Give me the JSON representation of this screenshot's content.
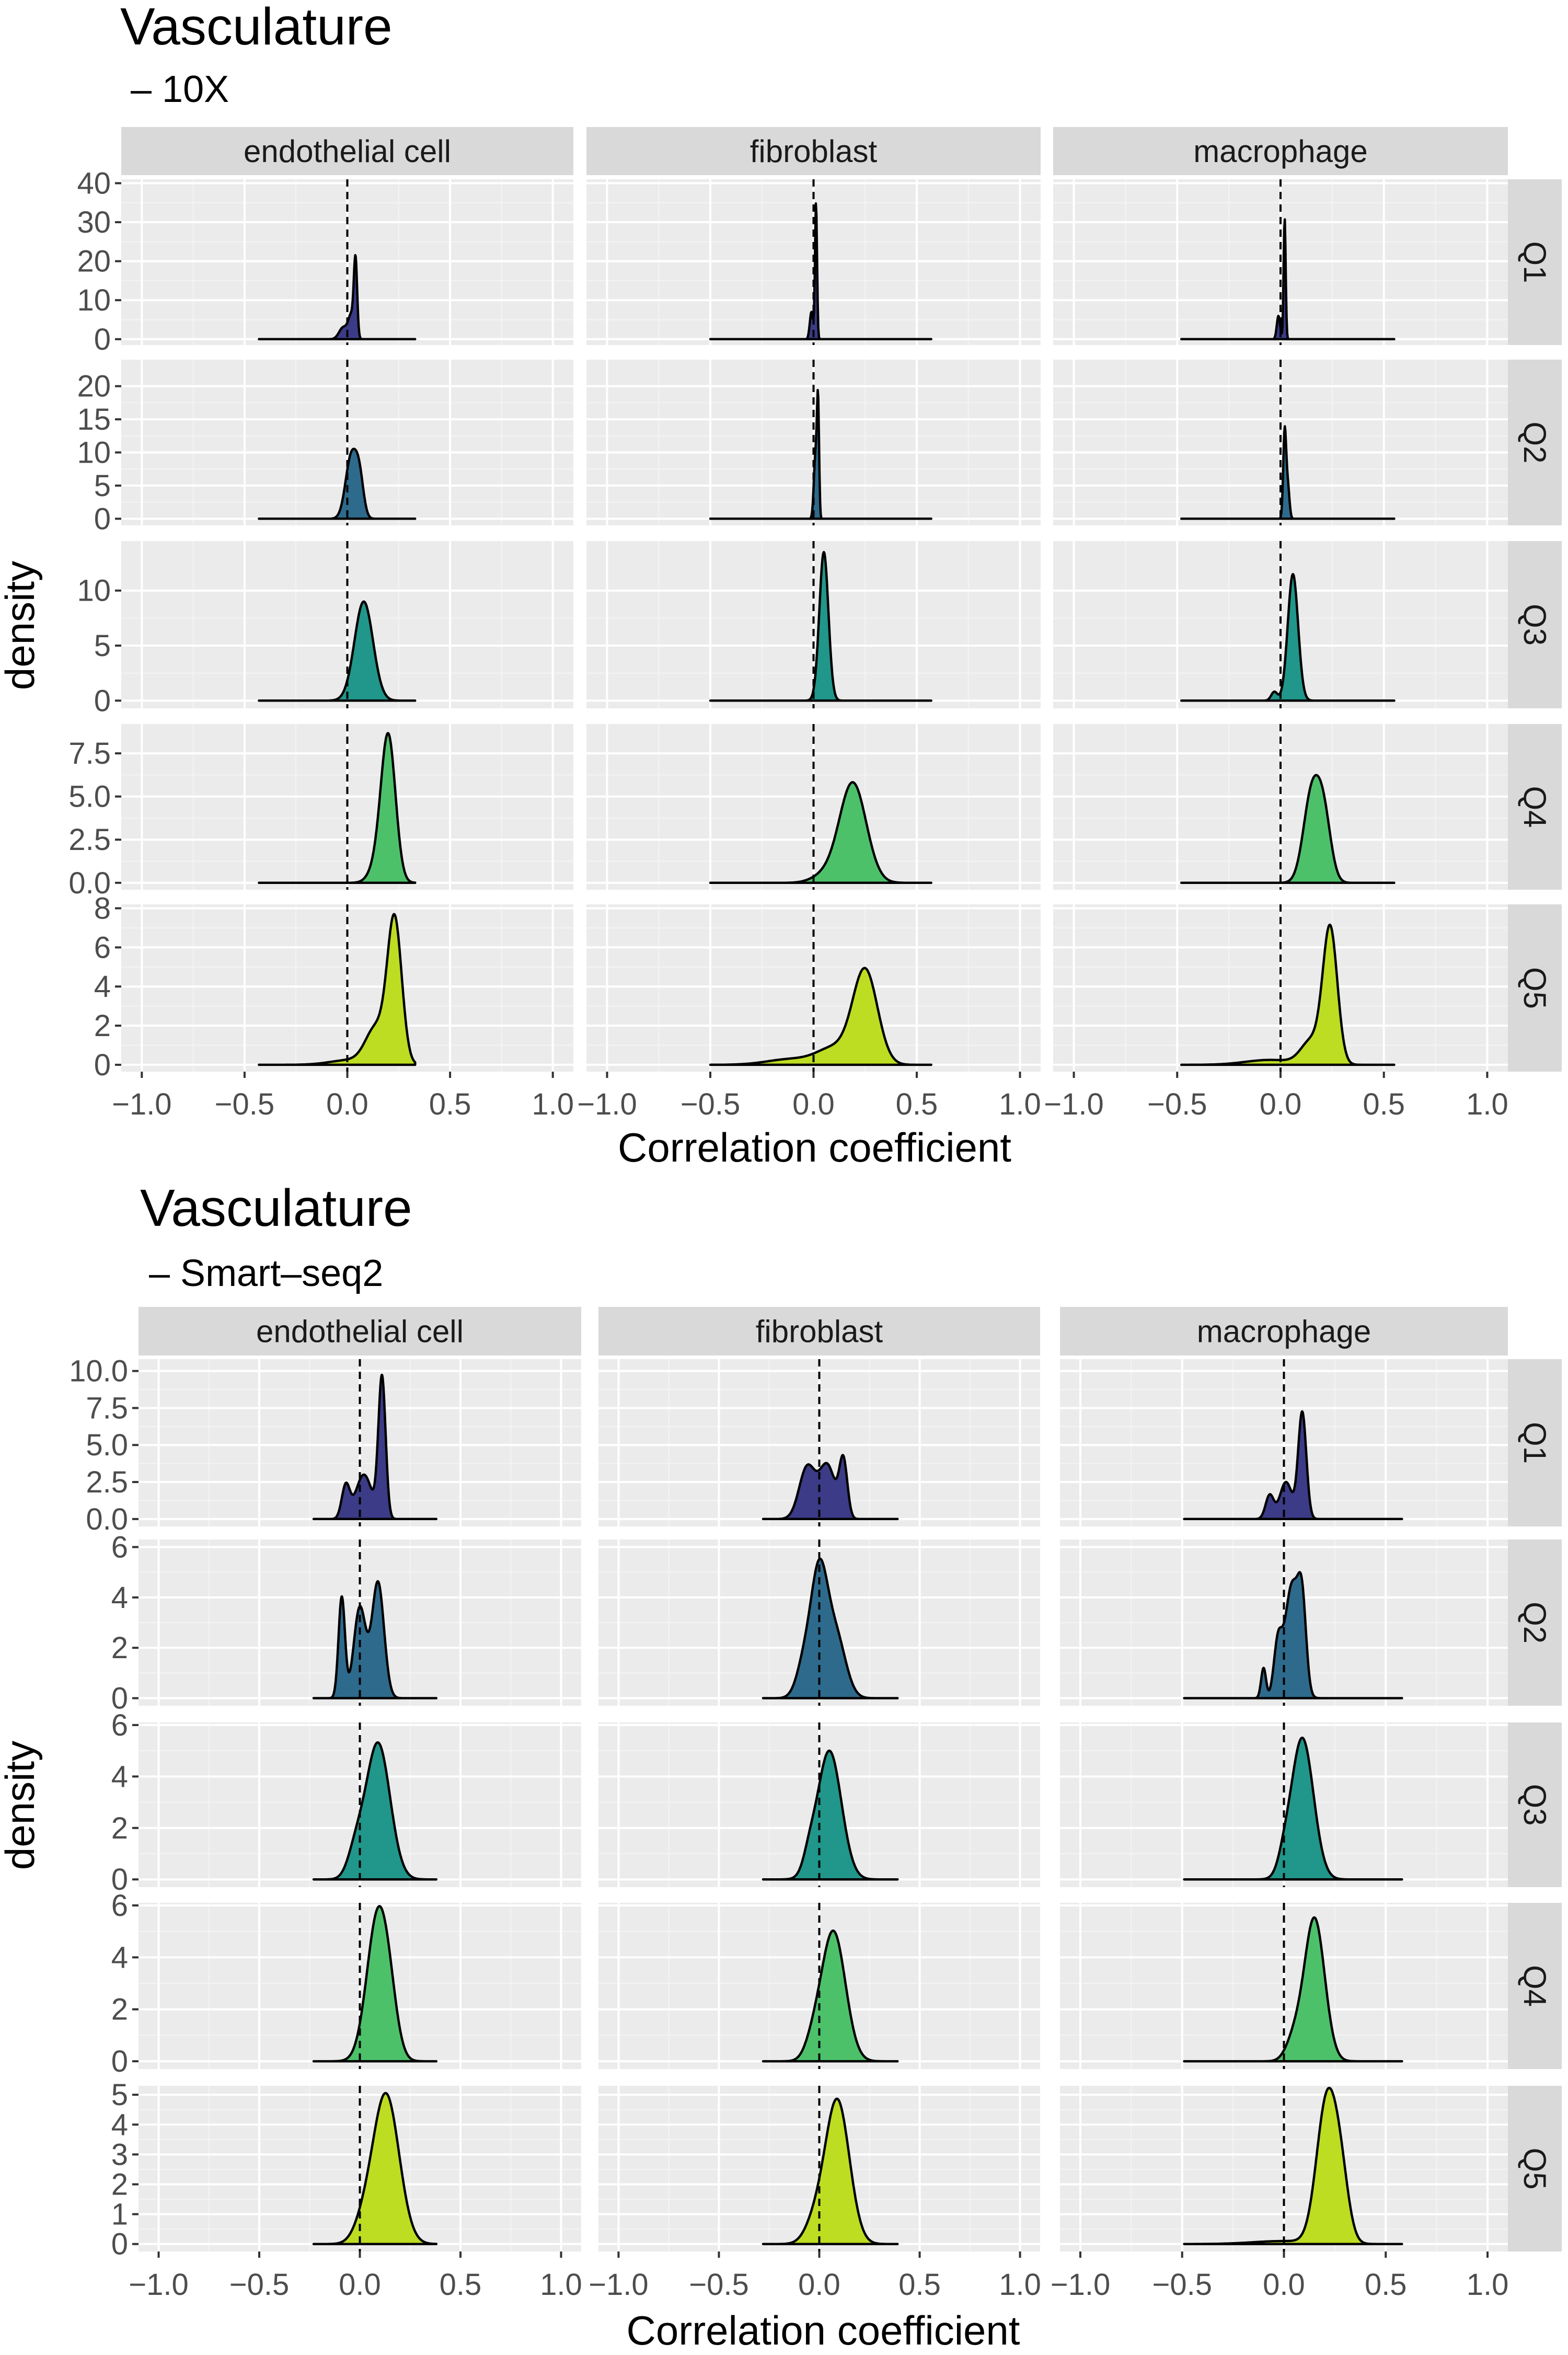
{
  "colors": {
    "panel_bg": "#EBEBEB",
    "strip_bg": "#D9D9D9",
    "grid_major": "#FFFFFF",
    "grid_minor": "#F4F4F4",
    "tick_text": "#4D4D4D",
    "outline": "#000000",
    "quantiles": {
      "Q1": "#3B3B87",
      "Q2": "#2E6A8C",
      "Q3": "#21968A",
      "Q4": "#4DC16A",
      "Q5": "#BDDD22"
    }
  },
  "chart_data": [
    {
      "type": "density",
      "title": "Vasculature",
      "subtitle": "– 10X",
      "xlabel": "Correlation coefficient",
      "ylabel": "density",
      "xlim": [
        -1.1,
        1.1
      ],
      "xticks": [
        -1.0,
        -0.5,
        0.0,
        0.5,
        1.0
      ],
      "xtick_labels": [
        "−1.0",
        "−0.5",
        "0.0",
        "0.5",
        "1.0"
      ],
      "vline": 0,
      "columns": [
        "endothelial cell",
        "fibroblast",
        "macrophage"
      ],
      "rows": [
        {
          "label": "Q1",
          "yticks": [
            0,
            10,
            20,
            30,
            40
          ],
          "ytick_labels": [
            "0",
            "10",
            "20",
            "30",
            "40"
          ],
          "ylim": [
            -1.5,
            41
          ]
        },
        {
          "label": "Q2",
          "yticks": [
            0,
            5,
            10,
            15,
            20
          ],
          "ytick_labels": [
            "0",
            "5",
            "10",
            "15",
            "20"
          ],
          "ylim": [
            -1,
            24
          ]
        },
        {
          "label": "Q3",
          "yticks": [
            0,
            5,
            10
          ],
          "ytick_labels": [
            "0",
            "5",
            "10"
          ],
          "ylim": [
            -0.7,
            14.5
          ]
        },
        {
          "label": "Q4",
          "yticks": [
            0,
            2.5,
            5,
            7.5
          ],
          "ytick_labels": [
            "0.0",
            "2.5",
            "5.0",
            "7.5"
          ],
          "ylim": [
            -0.4,
            9.2
          ]
        },
        {
          "label": "Q5",
          "yticks": [
            0,
            2,
            4,
            6,
            8
          ],
          "ytick_labels": [
            "0",
            "2",
            "4",
            "6",
            "8"
          ],
          "ylim": [
            -0.35,
            8.2
          ]
        }
      ],
      "panels": [
        {
          "row": "Q1",
          "column": "endothelial cell",
          "range": [
            -0.43,
            0.33
          ],
          "peaks": [
            [
              -0.02,
              0.02,
              3
            ],
            [
              0.02,
              0.015,
              6
            ],
            [
              0.04,
              0.008,
              19
            ]
          ]
        },
        {
          "row": "Q1",
          "column": "fibroblast",
          "range": [
            -0.5,
            0.57
          ],
          "peaks": [
            [
              -0.01,
              0.008,
              7
            ],
            [
              0.012,
              0.005,
              35
            ]
          ]
        },
        {
          "row": "Q1",
          "column": "macrophage",
          "range": [
            -0.48,
            0.55
          ],
          "peaks": [
            [
              -0.01,
              0.008,
              6
            ],
            [
              0.02,
              0.005,
              31
            ]
          ]
        },
        {
          "row": "Q2",
          "column": "endothelial cell",
          "range": [
            -0.43,
            0.33
          ],
          "peaks": [
            [
              0.02,
              0.028,
              9.5
            ],
            [
              0.06,
              0.02,
              5
            ]
          ]
        },
        {
          "row": "Q2",
          "column": "fibroblast",
          "range": [
            -0.5,
            0.57
          ],
          "peaks": [
            [
              0.01,
              0.008,
              10
            ],
            [
              0.022,
              0.005,
              16
            ]
          ]
        },
        {
          "row": "Q2",
          "column": "macrophage",
          "range": [
            -0.48,
            0.55
          ],
          "peaks": [
            [
              0.02,
              0.007,
              13
            ],
            [
              0.035,
              0.008,
              5
            ]
          ]
        },
        {
          "row": "Q3",
          "column": "endothelial cell",
          "range": [
            -0.43,
            0.33
          ],
          "peaks": [
            [
              0.08,
              0.045,
              9
            ]
          ]
        },
        {
          "row": "Q3",
          "column": "fibroblast",
          "range": [
            -0.5,
            0.57
          ],
          "peaks": [
            [
              0.05,
              0.022,
              13.5
            ]
          ]
        },
        {
          "row": "Q3",
          "column": "macrophage",
          "range": [
            -0.48,
            0.55
          ],
          "peaks": [
            [
              -0.03,
              0.015,
              0.8
            ],
            [
              0.06,
              0.025,
              11.5
            ]
          ]
        },
        {
          "row": "Q4",
          "column": "endothelial cell",
          "range": [
            -0.43,
            0.33
          ],
          "peaks": [
            [
              0.2,
              0.035,
              8.2
            ],
            [
              0.15,
              0.04,
              1
            ]
          ]
        },
        {
          "row": "Q4",
          "column": "fibroblast",
          "range": [
            -0.5,
            0.57
          ],
          "peaks": [
            [
              0.19,
              0.065,
              5.8
            ],
            [
              0.05,
              0.06,
              0.4
            ]
          ]
        },
        {
          "row": "Q4",
          "column": "macrophage",
          "range": [
            -0.48,
            0.55
          ],
          "peaks": [
            [
              0.15,
              0.04,
              5
            ],
            [
              0.21,
              0.035,
              3.5
            ]
          ]
        },
        {
          "row": "Q5",
          "column": "endothelial cell",
          "range": [
            -0.43,
            0.33
          ],
          "peaks": [
            [
              0.23,
              0.035,
              7.3
            ],
            [
              0.14,
              0.05,
              1.8
            ],
            [
              0.02,
              0.1,
              0.25
            ]
          ]
        },
        {
          "row": "Q5",
          "column": "fibroblast",
          "range": [
            -0.5,
            0.57
          ],
          "peaks": [
            [
              0.25,
              0.06,
              4.8
            ],
            [
              0.1,
              0.08,
              0.8
            ],
            [
              -0.1,
              0.12,
              0.3
            ]
          ]
        },
        {
          "row": "Q5",
          "column": "macrophage",
          "range": [
            -0.48,
            0.55
          ],
          "peaks": [
            [
              0.24,
              0.035,
              6.9
            ],
            [
              0.15,
              0.05,
              1.2
            ],
            [
              -0.05,
              0.12,
              0.25
            ]
          ]
        }
      ]
    },
    {
      "type": "density",
      "title": "Vasculature",
      "subtitle": "– Smart–seq2",
      "xlabel": "Correlation coefficient",
      "ylabel": "density",
      "xlim": [
        -1.1,
        1.1
      ],
      "xticks": [
        -1.0,
        -0.5,
        0.0,
        0.5,
        1.0
      ],
      "xtick_labels": [
        "−1.0",
        "−0.5",
        "0.0",
        "0.5",
        "1.0"
      ],
      "vline": 0,
      "columns": [
        "endothelial cell",
        "fibroblast",
        "macrophage"
      ],
      "rows": [
        {
          "label": "Q1",
          "yticks": [
            0,
            2.5,
            5,
            7.5,
            10
          ],
          "ytick_labels": [
            "0.0",
            "2.5",
            "5.0",
            "7.5",
            "10.0"
          ],
          "ylim": [
            -0.5,
            10.8
          ]
        },
        {
          "label": "Q2",
          "yticks": [
            0,
            2,
            4,
            6
          ],
          "ytick_labels": [
            "0",
            "2",
            "4",
            "6"
          ],
          "ylim": [
            -0.3,
            6.3
          ]
        },
        {
          "label": "Q3",
          "yticks": [
            0,
            2,
            4,
            6
          ],
          "ytick_labels": [
            "0",
            "2",
            "4",
            "6"
          ],
          "ylim": [
            -0.3,
            6.1
          ]
        },
        {
          "label": "Q4",
          "yticks": [
            0,
            2,
            4,
            6
          ],
          "ytick_labels": [
            "0",
            "2",
            "4",
            "6"
          ],
          "ylim": [
            -0.3,
            6.1
          ]
        },
        {
          "label": "Q5",
          "yticks": [
            0,
            1,
            2,
            3,
            4,
            5
          ],
          "ytick_labels": [
            "0",
            "1",
            "2",
            "3",
            "4",
            "5"
          ],
          "ylim": [
            -0.25,
            5.3
          ]
        }
      ],
      "panels": [
        {
          "row": "Q1",
          "column": "endothelial cell",
          "range": [
            -0.23,
            0.38
          ],
          "peaks": [
            [
              -0.07,
              0.02,
              2.2
            ],
            [
              0.02,
              0.04,
              3
            ],
            [
              0.11,
              0.018,
              9.5
            ]
          ]
        },
        {
          "row": "Q1",
          "column": "fibroblast",
          "range": [
            -0.28,
            0.39
          ],
          "peaks": [
            [
              -0.06,
              0.04,
              3.5
            ],
            [
              0.04,
              0.04,
              3.6
            ],
            [
              0.12,
              0.02,
              3.8
            ]
          ]
        },
        {
          "row": "Q1",
          "column": "macrophage",
          "range": [
            -0.49,
            0.58
          ],
          "peaks": [
            [
              -0.07,
              0.02,
              1.6
            ],
            [
              0.01,
              0.03,
              2.5
            ],
            [
              0.09,
              0.02,
              7.2
            ]
          ]
        },
        {
          "row": "Q2",
          "column": "endothelial cell",
          "range": [
            -0.23,
            0.38
          ],
          "peaks": [
            [
              -0.09,
              0.016,
              4
            ],
            [
              0.0,
              0.03,
              3.6
            ],
            [
              0.09,
              0.03,
              4.6
            ]
          ]
        },
        {
          "row": "Q2",
          "column": "fibroblast",
          "range": [
            -0.28,
            0.39
          ],
          "peaks": [
            [
              0.0,
              0.04,
              4.5
            ],
            [
              0.08,
              0.05,
              2.5
            ],
            [
              -0.07,
              0.04,
              1.5
            ]
          ]
        },
        {
          "row": "Q2",
          "column": "macrophage",
          "range": [
            -0.49,
            0.58
          ],
          "peaks": [
            [
              -0.1,
              0.012,
              1.2
            ],
            [
              -0.03,
              0.02,
              2
            ],
            [
              0.04,
              0.035,
              4.5
            ],
            [
              0.09,
              0.02,
              3
            ]
          ]
        },
        {
          "row": "Q3",
          "column": "endothelial cell",
          "range": [
            -0.23,
            0.38
          ],
          "peaks": [
            [
              0.09,
              0.06,
              5.3
            ],
            [
              -0.02,
              0.04,
              1
            ]
          ]
        },
        {
          "row": "Q3",
          "column": "fibroblast",
          "range": [
            -0.28,
            0.39
          ],
          "peaks": [
            [
              0.05,
              0.06,
              5
            ],
            [
              -0.05,
              0.03,
              0.6
            ]
          ]
        },
        {
          "row": "Q3",
          "column": "macrophage",
          "range": [
            -0.49,
            0.58
          ],
          "peaks": [
            [
              0.09,
              0.055,
              5.5
            ],
            [
              0.0,
              0.03,
              0.5
            ]
          ]
        },
        {
          "row": "Q4",
          "column": "endothelial cell",
          "range": [
            -0.23,
            0.38
          ],
          "peaks": [
            [
              0.09,
              0.055,
              5.6
            ],
            [
              0.15,
              0.04,
              1
            ]
          ]
        },
        {
          "row": "Q4",
          "column": "fibroblast",
          "range": [
            -0.28,
            0.39
          ],
          "peaks": [
            [
              0.07,
              0.06,
              5
            ],
            [
              -0.03,
              0.04,
              0.6
            ]
          ]
        },
        {
          "row": "Q4",
          "column": "macrophage",
          "range": [
            -0.49,
            0.58
          ],
          "peaks": [
            [
              0.15,
              0.05,
              5.5
            ],
            [
              0.05,
              0.04,
              0.8
            ]
          ]
        },
        {
          "row": "Q5",
          "column": "endothelial cell",
          "range": [
            -0.23,
            0.38
          ],
          "peaks": [
            [
              0.13,
              0.065,
              5
            ],
            [
              0.02,
              0.05,
              0.6
            ]
          ]
        },
        {
          "row": "Q5",
          "column": "fibroblast",
          "range": [
            -0.28,
            0.39
          ],
          "peaks": [
            [
              0.09,
              0.06,
              4.8
            ],
            [
              -0.02,
              0.05,
              0.7
            ]
          ]
        },
        {
          "row": "Q5",
          "column": "macrophage",
          "range": [
            -0.49,
            0.58
          ],
          "peaks": [
            [
              0.21,
              0.05,
              4.7
            ],
            [
              0.28,
              0.04,
              1.8
            ],
            [
              0.0,
              0.15,
              0.1
            ]
          ]
        }
      ]
    }
  ]
}
